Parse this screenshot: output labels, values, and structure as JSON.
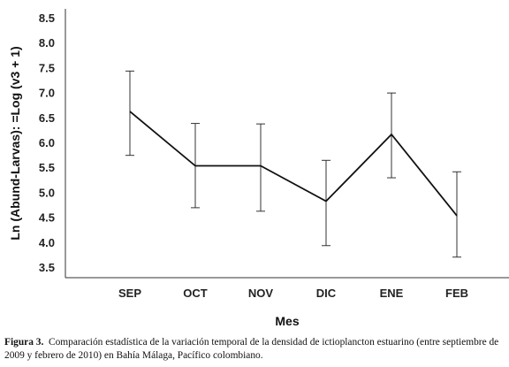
{
  "chart_data": {
    "type": "line",
    "categories": [
      "SEP",
      "OCT",
      "NOV",
      "DIC",
      "ENE",
      "FEB"
    ],
    "series": [
      {
        "values": [
          6.62,
          5.53,
          5.53,
          4.82,
          6.16,
          4.53
        ],
        "error_low": [
          5.74,
          4.69,
          4.62,
          3.93,
          5.29,
          3.7
        ],
        "error_high": [
          7.43,
          6.38,
          6.37,
          5.64,
          6.99,
          5.41
        ],
        "color": "#111111"
      }
    ],
    "yticks": [
      "8.5",
      "8.0",
      "7.5",
      "7.0",
      "6.5",
      "6.0",
      "5.5",
      "5.0",
      "4.5",
      "4.0",
      "3.5"
    ],
    "ylim": [
      3.3,
      8.6
    ],
    "xlabel": "Mes",
    "ylabel": "Ln (Abund-Larvas): =Log (v3 + 1)",
    "grid": false,
    "legend": "none"
  },
  "caption": {
    "label": "Figura 3.",
    "text": "Comparación estadística de la variación temporal de la densidad de ictioplancton estuarino (entre septiembre de 2009 y febrero de 2010) en Bahía Málaga, Pacífico colombiano."
  }
}
